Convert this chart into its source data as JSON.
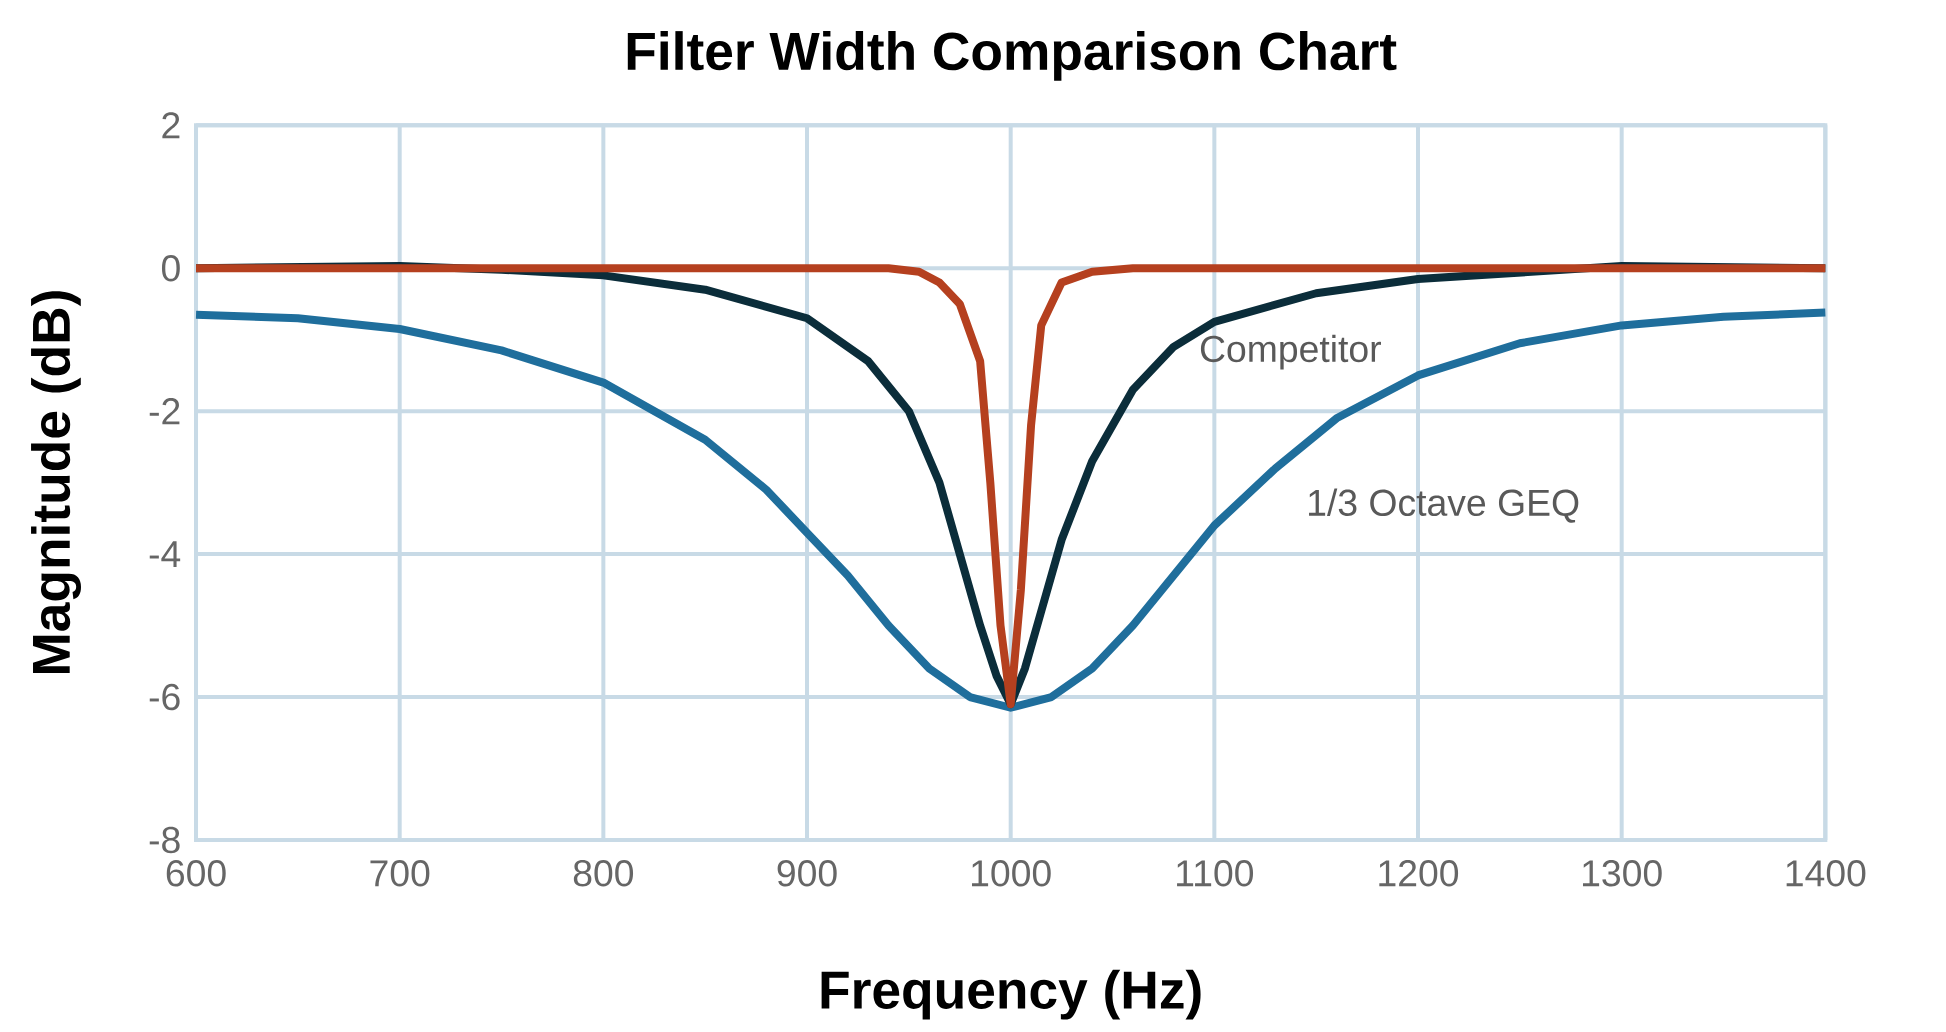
{
  "chart_data": {
    "type": "line",
    "title": "Filter Width Comparison Chart",
    "xlabel": "Frequency (Hz)",
    "ylabel": "Magnitude (dB)",
    "xlim": [
      600,
      1400
    ],
    "xticks": [
      600,
      700,
      800,
      900,
      1000,
      1100,
      1200,
      1300,
      1400
    ],
    "ylim": [
      -8,
      2
    ],
    "yticks": [
      -8,
      -6,
      -4,
      -2,
      0,
      2
    ],
    "grid": true,
    "legend": false,
    "marker": "none",
    "line_style": "solid",
    "series": [
      {
        "name": "1/3 Octave GEQ",
        "color": "#1f6e9c",
        "x": [
          600,
          650,
          700,
          750,
          800,
          850,
          880,
          900,
          920,
          940,
          960,
          980,
          1000,
          1020,
          1040,
          1060,
          1080,
          1100,
          1130,
          1160,
          1200,
          1250,
          1300,
          1350,
          1400
        ],
        "values": [
          -0.65,
          -0.7,
          -0.85,
          -1.15,
          -1.6,
          -2.4,
          -3.1,
          -3.7,
          -4.3,
          -5.0,
          -5.6,
          -6.0,
          -6.15,
          -6.0,
          -5.6,
          -5.0,
          -4.3,
          -3.6,
          -2.8,
          -2.1,
          -1.5,
          -1.05,
          -0.8,
          -0.68,
          -0.62
        ]
      },
      {
        "name": "Competitor",
        "color": "#0b2d3a",
        "x": [
          600,
          700,
          750,
          800,
          850,
          900,
          930,
          950,
          965,
          975,
          985,
          993,
          1000,
          1007,
          1015,
          1025,
          1040,
          1060,
          1080,
          1100,
          1150,
          1200,
          1300,
          1400
        ],
        "values": [
          0,
          0.03,
          -0.02,
          -0.1,
          -0.3,
          -0.7,
          -1.3,
          -2.0,
          -3.0,
          -4.0,
          -5.0,
          -5.7,
          -6.1,
          -5.6,
          -4.8,
          -3.8,
          -2.7,
          -1.7,
          -1.1,
          -0.75,
          -0.35,
          -0.15,
          0.03,
          0
        ]
      },
      {
        "color": "#b5401f",
        "x": [
          600,
          940,
          955,
          965,
          975,
          985,
          990,
          995,
          1000,
          1005,
          1010,
          1015,
          1025,
          1040,
          1060,
          1400
        ],
        "values": [
          0,
          0,
          -0.05,
          -0.2,
          -0.5,
          -1.3,
          -3,
          -5,
          -6.1,
          -4.5,
          -2.2,
          -0.8,
          -0.2,
          -0.05,
          0,
          0
        ]
      }
    ]
  }
}
